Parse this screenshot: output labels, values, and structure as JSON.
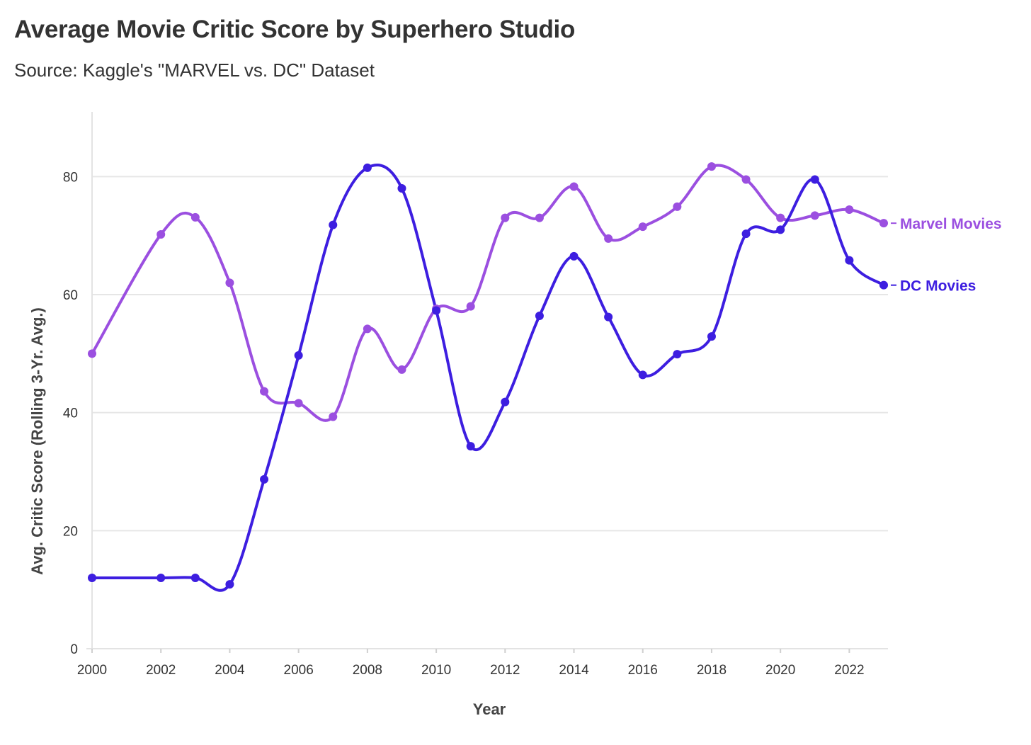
{
  "chart_data": {
    "type": "line",
    "title": "Average Movie Critic Score by Superhero Studio",
    "subtitle": "Source: Kaggle's \"MARVEL vs. DC\" Dataset",
    "xlabel": "Year",
    "ylabel": "Avg. Critic Score (Rolling 3-Yr. Avg.)",
    "xlim": [
      2000,
      2023
    ],
    "ylim": [
      0,
      90
    ],
    "x_ticks": [
      "2000",
      "2002",
      "2004",
      "2006",
      "2008",
      "2010",
      "2012",
      "2014",
      "2016",
      "2018",
      "2020",
      "2022"
    ],
    "y_ticks": [
      "0",
      "20",
      "40",
      "60",
      "80"
    ],
    "grid": true,
    "legend": "direct labels at right end of lines",
    "series": [
      {
        "name": "Marvel Movies",
        "color": "#9b4fe0",
        "x": [
          2000,
          2002,
          2003,
          2004,
          2005,
          2006,
          2007,
          2008,
          2009,
          2010,
          2011,
          2012,
          2013,
          2014,
          2015,
          2016,
          2017,
          2018,
          2019,
          2020,
          2021,
          2022,
          2023
        ],
        "y": [
          50,
          70.2,
          73.1,
          62,
          43.6,
          41.6,
          39.3,
          54.2,
          47.3,
          57.6,
          58,
          73,
          73,
          78.3,
          69.5,
          71.5,
          74.9,
          81.7,
          79.5,
          73,
          73.4,
          74.4,
          72.1
        ]
      },
      {
        "name": "DC Movies",
        "color": "#3d1ee0",
        "x": [
          2000,
          2002,
          2003,
          2004,
          2005,
          2006,
          2007,
          2008,
          2009,
          2010,
          2011,
          2012,
          2013,
          2014,
          2015,
          2016,
          2017,
          2018,
          2019,
          2020,
          2021,
          2022,
          2023
        ],
        "y": [
          12,
          12,
          12,
          10.9,
          28.7,
          49.7,
          71.8,
          81.5,
          78,
          57.3,
          34.3,
          41.8,
          56.4,
          66.5,
          56.2,
          46.4,
          49.9,
          52.9,
          70.3,
          71,
          79.5,
          65.8,
          61.6
        ]
      }
    ]
  }
}
